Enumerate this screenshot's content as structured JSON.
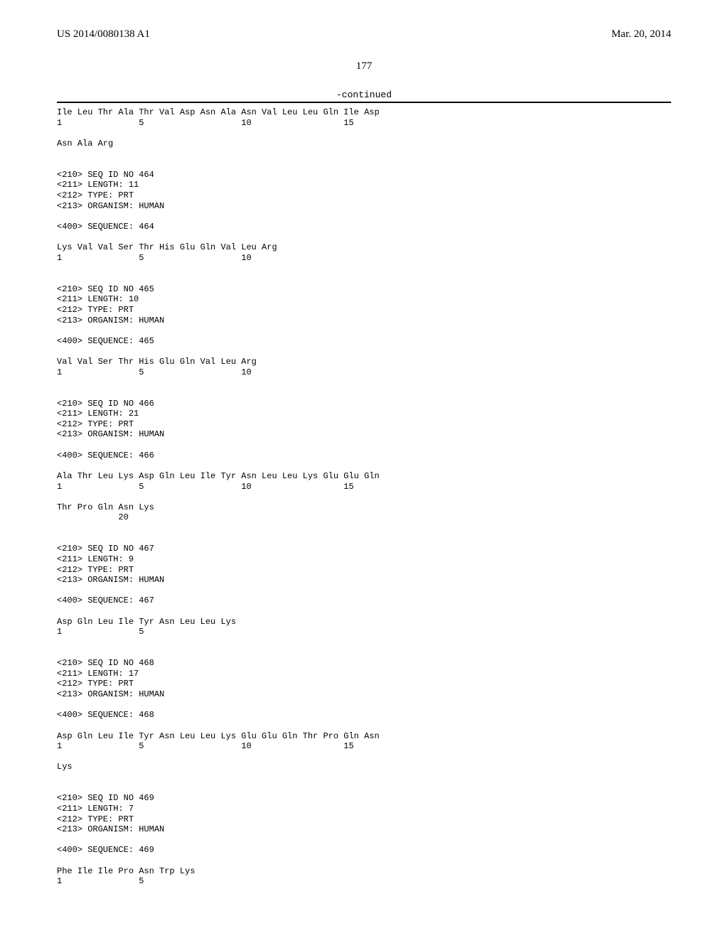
{
  "header": {
    "pub_number": "US 2014/0080138 A1",
    "pub_date": "Mar. 20, 2014"
  },
  "page_number": "177",
  "continued_label": "-continued",
  "listing": "Ile Leu Thr Ala Thr Val Asp Asn Ala Asn Val Leu Leu Gln Ile Asp\n1               5                   10                  15\n\nAsn Ala Arg\n\n\n<210> SEQ ID NO 464\n<211> LENGTH: 11\n<212> TYPE: PRT\n<213> ORGANISM: HUMAN\n\n<400> SEQUENCE: 464\n\nLys Val Val Ser Thr His Glu Gln Val Leu Arg\n1               5                   10\n\n\n<210> SEQ ID NO 465\n<211> LENGTH: 10\n<212> TYPE: PRT\n<213> ORGANISM: HUMAN\n\n<400> SEQUENCE: 465\n\nVal Val Ser Thr His Glu Gln Val Leu Arg\n1               5                   10\n\n\n<210> SEQ ID NO 466\n<211> LENGTH: 21\n<212> TYPE: PRT\n<213> ORGANISM: HUMAN\n\n<400> SEQUENCE: 466\n\nAla Thr Leu Lys Asp Gln Leu Ile Tyr Asn Leu Leu Lys Glu Glu Gln\n1               5                   10                  15\n\nThr Pro Gln Asn Lys\n            20\n\n\n<210> SEQ ID NO 467\n<211> LENGTH: 9\n<212> TYPE: PRT\n<213> ORGANISM: HUMAN\n\n<400> SEQUENCE: 467\n\nAsp Gln Leu Ile Tyr Asn Leu Leu Lys\n1               5\n\n\n<210> SEQ ID NO 468\n<211> LENGTH: 17\n<212> TYPE: PRT\n<213> ORGANISM: HUMAN\n\n<400> SEQUENCE: 468\n\nAsp Gln Leu Ile Tyr Asn Leu Leu Lys Glu Glu Gln Thr Pro Gln Asn\n1               5                   10                  15\n\nLys\n\n\n<210> SEQ ID NO 469\n<211> LENGTH: 7\n<212> TYPE: PRT\n<213> ORGANISM: HUMAN\n\n<400> SEQUENCE: 469\n\nPhe Ile Ile Pro Asn Trp Lys\n1               5"
}
